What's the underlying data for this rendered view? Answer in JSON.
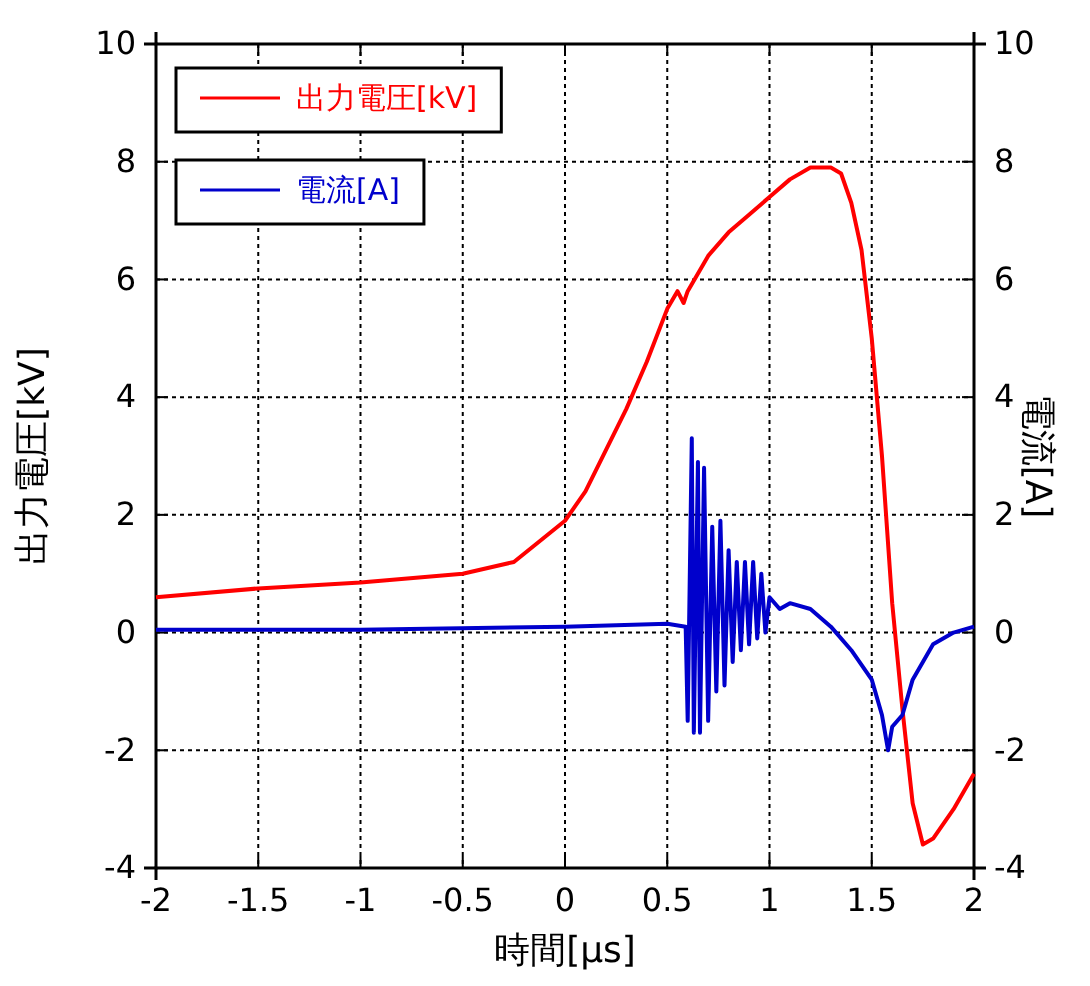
{
  "chart_data": {
    "type": "line",
    "xlabel": "時間[μs]",
    "ylabel": "出力電圧[kV]",
    "y2label": "電流[A]",
    "xlim": [
      -2,
      2
    ],
    "xticks": [
      -2,
      -1.5,
      -1,
      -0.5,
      0,
      0.5,
      1,
      1.5,
      2
    ],
    "ylim": [
      -4,
      10
    ],
    "yticks": [
      -4,
      -2,
      0,
      2,
      4,
      6,
      8,
      10
    ],
    "y2lim": [
      -4,
      10
    ],
    "y2ticks": [
      -4,
      -2,
      0,
      2,
      4,
      6,
      8,
      10
    ],
    "grid": true,
    "legend": "top left",
    "line_style": "solid",
    "marker": "none",
    "series": [
      {
        "name": "出力電圧[kV]",
        "color": "#ff0000",
        "x": [
          -2,
          -1.5,
          -1,
          -0.5,
          -0.25,
          0,
          0.1,
          0.2,
          0.3,
          0.4,
          0.5,
          0.55,
          0.58,
          0.6,
          0.7,
          0.8,
          0.9,
          1.0,
          1.1,
          1.2,
          1.3,
          1.35,
          1.4,
          1.45,
          1.5,
          1.55,
          1.6,
          1.65,
          1.7,
          1.75,
          1.8,
          1.9,
          2.0
        ],
        "values": [
          0.6,
          0.75,
          0.85,
          1.0,
          1.2,
          1.9,
          2.4,
          3.1,
          3.8,
          4.6,
          5.5,
          5.8,
          5.6,
          5.8,
          6.4,
          6.8,
          7.1,
          7.4,
          7.7,
          7.9,
          7.9,
          7.8,
          7.3,
          6.5,
          5.0,
          3.0,
          0.5,
          -1.3,
          -2.9,
          -3.6,
          -3.5,
          -3.0,
          -2.4
        ]
      },
      {
        "name": "電流[A]",
        "color": "#0000cc",
        "axis": "y2",
        "x": [
          -2,
          -1,
          0,
          0.5,
          0.59,
          0.6,
          0.62,
          0.63,
          0.65,
          0.66,
          0.68,
          0.7,
          0.72,
          0.74,
          0.76,
          0.78,
          0.8,
          0.82,
          0.84,
          0.86,
          0.88,
          0.9,
          0.92,
          0.94,
          0.96,
          0.98,
          1.0,
          1.05,
          1.1,
          1.2,
          1.3,
          1.4,
          1.5,
          1.55,
          1.58,
          1.6,
          1.65,
          1.7,
          1.8,
          1.9,
          2.0
        ],
        "values": [
          0.05,
          0.05,
          0.1,
          0.15,
          0.1,
          -1.5,
          3.3,
          -1.7,
          2.9,
          -1.7,
          2.8,
          -1.5,
          1.8,
          -1.0,
          1.9,
          -0.9,
          1.4,
          -0.5,
          1.2,
          -0.3,
          1.2,
          -0.2,
          1.2,
          -0.1,
          1.0,
          0.0,
          0.6,
          0.4,
          0.5,
          0.4,
          0.1,
          -0.3,
          -0.8,
          -1.4,
          -2.0,
          -1.6,
          -1.4,
          -0.8,
          -0.2,
          0.0,
          0.1
        ]
      }
    ]
  }
}
